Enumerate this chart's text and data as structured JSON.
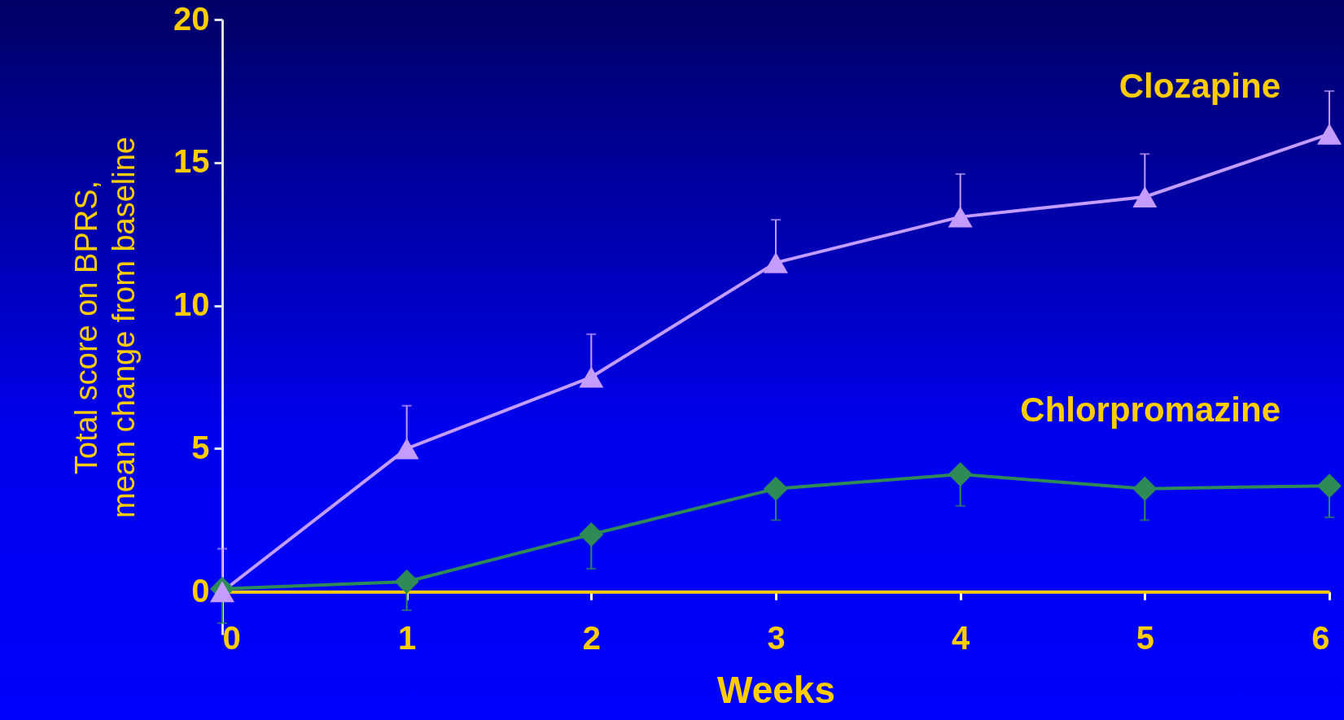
{
  "chart_data": {
    "type": "line",
    "xlabel": "Weeks",
    "ylabel": "Total score on BPRS,\nmean change from baseline",
    "x": [
      0,
      1,
      2,
      3,
      4,
      5,
      6
    ],
    "series": [
      {
        "name": "Clozapine",
        "color": "#c49cff",
        "marker": "triangle",
        "values": [
          0,
          5.0,
          7.5,
          11.5,
          13.1,
          13.8,
          16.0
        ],
        "errors": [
          [
            0,
            1.5
          ],
          [
            5.0,
            6.5
          ],
          [
            7.5,
            9.0
          ],
          [
            11.5,
            13.0
          ],
          [
            13.1,
            14.6
          ],
          [
            13.8,
            15.3
          ],
          [
            16.0,
            17.5
          ]
        ]
      },
      {
        "name": "Chlorpromazine",
        "color": "#2e8b57",
        "marker": "diamond",
        "values": [
          0.1,
          0.35,
          2.0,
          3.6,
          4.1,
          3.6,
          3.7
        ],
        "errors": [
          [
            -1.1,
            0.1
          ],
          [
            -0.65,
            0.35
          ],
          [
            0.8,
            2.0
          ],
          [
            2.5,
            3.6
          ],
          [
            3.0,
            4.1
          ],
          [
            2.5,
            3.6
          ],
          [
            2.6,
            3.7
          ]
        ]
      }
    ],
    "xlim": [
      0,
      6
    ],
    "xticks": [
      0,
      1,
      2,
      3,
      4,
      5,
      6
    ],
    "ylim": [
      -1.5,
      20
    ],
    "yticks": [
      0,
      5,
      10,
      15,
      20
    ],
    "grid": false,
    "legend": false
  }
}
